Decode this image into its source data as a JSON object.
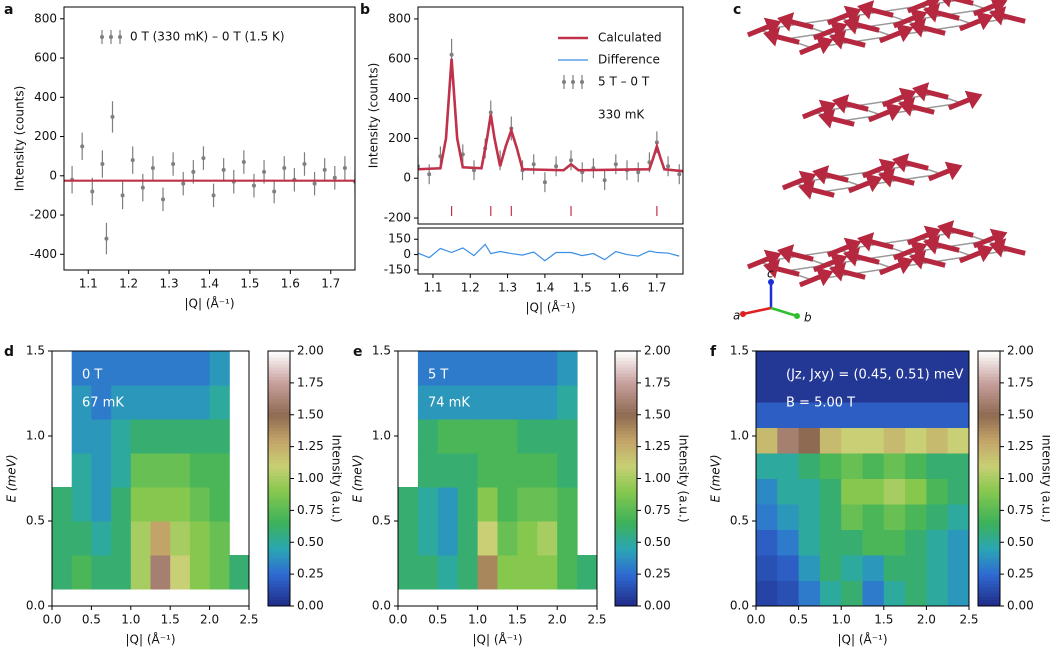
{
  "chart_data": [
    {
      "label": "a",
      "type": "errorbar",
      "xlabel": "|Q| (Å⁻¹)",
      "ylabel": "Intensity (counts)",
      "xlim": [
        1.04,
        1.76
      ],
      "ylim": [
        -480,
        860
      ],
      "xticks": [
        1.1,
        1.2,
        1.3,
        1.4,
        1.5,
        1.6,
        1.7
      ],
      "yticks": [
        -400,
        -200,
        0,
        200,
        400,
        600,
        800
      ],
      "series": [
        {
          "name": "0 T (330 mK) – 0 T (1.5 K)",
          "color": "#7f7f7f",
          "style": "errorbar",
          "x": [
            1.06,
            1.085,
            1.11,
            1.135,
            1.145,
            1.16,
            1.185,
            1.21,
            1.235,
            1.26,
            1.285,
            1.31,
            1.335,
            1.36,
            1.385,
            1.41,
            1.435,
            1.46,
            1.485,
            1.51,
            1.535,
            1.56,
            1.585,
            1.61,
            1.635,
            1.66,
            1.685,
            1.71,
            1.735,
            1.76
          ],
          "values": [
            -20,
            150,
            -80,
            60,
            -320,
            300,
            -100,
            80,
            -60,
            40,
            -120,
            60,
            -40,
            20,
            90,
            -100,
            30,
            -30,
            70,
            -50,
            20,
            -80,
            40,
            -20,
            60,
            -40,
            30,
            -10,
            40,
            -30
          ],
          "errors": [
            70,
            70,
            70,
            70,
            80,
            80,
            70,
            70,
            70,
            60,
            60,
            60,
            60,
            60,
            60,
            60,
            60,
            60,
            60,
            60,
            60,
            60,
            60,
            60,
            60,
            60,
            60,
            60,
            60,
            60
          ]
        }
      ],
      "fit": {
        "color": "#c0314a",
        "x": [
          1.04,
          1.76
        ],
        "values": [
          -25,
          -25
        ]
      }
    },
    {
      "label": "b",
      "type": "errorbar",
      "xlabel": "|Q| (Å⁻¹)",
      "ylabel": "Intensity (counts)",
      "xlim": [
        1.06,
        1.77
      ],
      "ylim": [
        -230,
        860
      ],
      "xticks": [
        1.1,
        1.2,
        1.3,
        1.4,
        1.5,
        1.6,
        1.7
      ],
      "yticks": [
        -200,
        0,
        200,
        400,
        600,
        800
      ],
      "lower_ylim": [
        -190,
        260
      ],
      "lower_yticks": [
        -150,
        0,
        150
      ],
      "series": [
        {
          "name": "Calculated",
          "color": "#c0314a",
          "style": "line",
          "x": [
            1.06,
            1.12,
            1.135,
            1.15,
            1.165,
            1.18,
            1.23,
            1.245,
            1.255,
            1.265,
            1.28,
            1.295,
            1.31,
            1.325,
            1.34,
            1.45,
            1.46,
            1.47,
            1.48,
            1.49,
            1.68,
            1.69,
            1.7,
            1.71,
            1.72,
            1.77
          ],
          "values": [
            45,
            50,
            200,
            600,
            200,
            55,
            50,
            200,
            320,
            200,
            60,
            160,
            240,
            150,
            45,
            40,
            55,
            70,
            55,
            40,
            45,
            100,
            160,
            100,
            45,
            35
          ]
        },
        {
          "name": "Difference",
          "color": "#3a8ee6",
          "style": "line",
          "axis": "lower",
          "x": [
            1.06,
            1.09,
            1.12,
            1.15,
            1.18,
            1.21,
            1.24,
            1.255,
            1.28,
            1.31,
            1.34,
            1.37,
            1.4,
            1.43,
            1.47,
            1.5,
            1.53,
            1.56,
            1.59,
            1.62,
            1.65,
            1.68,
            1.7,
            1.73,
            1.76
          ],
          "values": [
            15,
            -30,
            60,
            20,
            65,
            -10,
            100,
            10,
            30,
            10,
            -5,
            25,
            -60,
            20,
            20,
            -10,
            10,
            -50,
            30,
            0,
            -15,
            35,
            20,
            15,
            -15
          ]
        },
        {
          "name": "5 T – 0 T",
          "color": "#7f7f7f",
          "style": "errorbar",
          "x": [
            1.06,
            1.09,
            1.12,
            1.15,
            1.18,
            1.21,
            1.24,
            1.255,
            1.28,
            1.31,
            1.34,
            1.37,
            1.4,
            1.43,
            1.47,
            1.5,
            1.53,
            1.56,
            1.59,
            1.62,
            1.65,
            1.68,
            1.7,
            1.73,
            1.76
          ],
          "values": [
            60,
            20,
            110,
            620,
            120,
            40,
            150,
            330,
            90,
            250,
            40,
            70,
            -20,
            60,
            90,
            30,
            50,
            -10,
            70,
            40,
            30,
            80,
            180,
            60,
            20
          ],
          "errors": [
            50,
            50,
            50,
            80,
            50,
            50,
            50,
            60,
            50,
            60,
            50,
            50,
            50,
            50,
            50,
            50,
            50,
            50,
            50,
            50,
            50,
            50,
            55,
            50,
            50
          ]
        }
      ],
      "peak_positions": [
        1.15,
        1.255,
        1.31,
        1.47,
        1.7
      ],
      "peak_color": "#c0314a",
      "annotation": "330 mK"
    },
    {
      "label": "d",
      "type": "heatmap",
      "xlabel": "|Q| (Å⁻¹)",
      "ylabel": "E (meV)",
      "xlim": [
        0,
        2.5
      ],
      "ylim": [
        0,
        1.5
      ],
      "xticks": [
        {
          "value": 0,
          "label": "0.0"
        },
        0.5,
        {
          "value": 1,
          "label": "1.0"
        },
        1.5,
        {
          "value": 2,
          "label": "2.0"
        },
        2.5
      ],
      "yticks": [
        {
          "value": 0,
          "label": "0.0"
        },
        0.5,
        {
          "value": 1,
          "label": "1.0"
        },
        1.5
      ],
      "xbins": [
        0,
        0.25,
        0.5,
        0.75,
        1,
        1.25,
        1.5,
        1.75,
        2,
        2.25,
        2.5
      ],
      "ybins": [
        0.1,
        0.3,
        0.5,
        0.7,
        0.9,
        1.1,
        1.3,
        1.5
      ],
      "z": [
        [
          0.6,
          0.7,
          0.6,
          0.6,
          1.0,
          1.6,
          1.1,
          0.9,
          0.8,
          0.6
        ],
        [
          0.6,
          0.6,
          0.5,
          0.6,
          1.0,
          1.3,
          1.0,
          0.9,
          0.8,
          null
        ],
        [
          0.6,
          0.5,
          0.4,
          0.6,
          0.9,
          0.9,
          0.9,
          0.8,
          0.7,
          null
        ],
        [
          null,
          0.5,
          0.4,
          0.5,
          0.8,
          0.8,
          0.8,
          0.7,
          0.7,
          null
        ],
        [
          null,
          0.4,
          0.4,
          0.5,
          0.6,
          0.6,
          0.6,
          0.6,
          0.6,
          null
        ],
        [
          null,
          0.4,
          0.3,
          0.4,
          0.4,
          0.4,
          0.4,
          0.4,
          0.5,
          null
        ],
        [
          null,
          0.3,
          0.3,
          0.3,
          0.3,
          0.3,
          0.3,
          0.3,
          0.4,
          null
        ]
      ],
      "clim": [
        0,
        2
      ],
      "clabel": "Intensity (a.u.)",
      "cticks": [
        {
          "value": 0,
          "label": "0.00"
        },
        {
          "value": 0.25,
          "label": "0.25"
        },
        {
          "value": 0.5,
          "label": "0.50"
        },
        {
          "value": 0.75,
          "label": "0.75"
        },
        {
          "value": 1,
          "label": "1.00"
        },
        {
          "value": 1.25,
          "label": "1.25"
        },
        {
          "value": 1.5,
          "label": "1.50"
        },
        {
          "value": 1.75,
          "label": "1.75"
        },
        {
          "value": 2,
          "label": "2.00"
        }
      ],
      "annotations": [
        "0 T",
        "67 mK"
      ]
    },
    {
      "label": "e",
      "type": "heatmap",
      "xlabel": "|Q| (Å⁻¹)",
      "ylabel": "E (meV)",
      "xlim": [
        0,
        2.5
      ],
      "ylim": [
        0,
        1.5
      ],
      "xticks": [
        {
          "value": 0,
          "label": "0.0"
        },
        0.5,
        {
          "value": 1,
          "label": "1.0"
        },
        1.5,
        {
          "value": 2,
          "label": "2.0"
        },
        2.5
      ],
      "yticks": [
        {
          "value": 0,
          "label": "0.0"
        },
        0.5,
        {
          "value": 1,
          "label": "1.0"
        },
        1.5
      ],
      "xbins": [
        0,
        0.25,
        0.5,
        0.75,
        1,
        1.25,
        1.5,
        1.75,
        2,
        2.25,
        2.5
      ],
      "ybins": [
        0.1,
        0.3,
        0.5,
        0.7,
        0.9,
        1.1,
        1.3,
        1.5
      ],
      "z": [
        [
          0.6,
          0.6,
          0.5,
          0.6,
          1.4,
          0.9,
          0.9,
          0.9,
          0.7,
          0.6
        ],
        [
          0.6,
          0.5,
          0.4,
          0.6,
          1.1,
          0.8,
          0.9,
          1.0,
          0.7,
          null
        ],
        [
          0.6,
          0.5,
          0.4,
          0.6,
          0.9,
          0.7,
          0.8,
          0.8,
          0.7,
          null
        ],
        [
          null,
          0.6,
          0.6,
          0.6,
          0.7,
          0.7,
          0.7,
          0.7,
          0.6,
          null
        ],
        [
          null,
          0.6,
          0.7,
          0.7,
          0.7,
          0.7,
          0.6,
          0.6,
          0.6,
          null
        ],
        [
          null,
          0.4,
          0.4,
          0.4,
          0.4,
          0.4,
          0.4,
          0.4,
          0.5,
          null
        ],
        [
          null,
          0.3,
          0.3,
          0.3,
          0.3,
          0.3,
          0.3,
          0.3,
          0.4,
          null
        ]
      ],
      "clim": [
        0,
        2
      ],
      "clabel": "Intensity (a.u.)",
      "cticks": [
        {
          "value": 0,
          "label": "0.00"
        },
        {
          "value": 0.25,
          "label": "0.25"
        },
        {
          "value": 0.5,
          "label": "0.50"
        },
        {
          "value": 0.75,
          "label": "0.75"
        },
        {
          "value": 1,
          "label": "1.00"
        },
        {
          "value": 1.25,
          "label": "1.25"
        },
        {
          "value": 1.5,
          "label": "1.50"
        },
        {
          "value": 1.75,
          "label": "1.75"
        },
        {
          "value": 2,
          "label": "2.00"
        }
      ],
      "annotations": [
        "5 T",
        "74 mK"
      ]
    },
    {
      "label": "f",
      "type": "heatmap",
      "xlabel": "|Q| (Å⁻¹)",
      "ylabel": "E (meV)",
      "xlim": [
        0,
        2.5
      ],
      "ylim": [
        0,
        1.5
      ],
      "xticks": [
        {
          "value": 0,
          "label": "0.0"
        },
        0.5,
        {
          "value": 1,
          "label": "1.0"
        },
        1.5,
        {
          "value": 2,
          "label": "2.0"
        },
        2.5
      ],
      "yticks": [
        {
          "value": 0,
          "label": "0.0"
        },
        0.5,
        {
          "value": 1,
          "label": "1.0"
        },
        1.5
      ],
      "xbins": [
        0,
        0.25,
        0.5,
        0.75,
        1,
        1.25,
        1.5,
        1.75,
        2,
        2.25,
        2.5
      ],
      "ybins": [
        0,
        0.15,
        0.3,
        0.45,
        0.6,
        0.75,
        0.9,
        1.05,
        1.2,
        1.35,
        1.5
      ],
      "z": [
        [
          0.1,
          0.15,
          0.3,
          0.5,
          0.6,
          0.3,
          0.5,
          0.6,
          0.5,
          0.4
        ],
        [
          0.15,
          0.2,
          0.4,
          0.6,
          0.5,
          0.4,
          0.6,
          0.6,
          0.5,
          0.4
        ],
        [
          0.2,
          0.3,
          0.5,
          0.6,
          0.6,
          0.7,
          0.7,
          0.6,
          0.5,
          0.4
        ],
        [
          0.3,
          0.4,
          0.5,
          0.6,
          0.8,
          0.7,
          0.8,
          0.7,
          0.6,
          0.5
        ],
        [
          0.35,
          0.5,
          0.5,
          0.6,
          0.9,
          0.9,
          1.0,
          0.9,
          0.7,
          0.6
        ],
        [
          0.5,
          0.5,
          0.6,
          0.7,
          0.8,
          0.7,
          0.8,
          0.7,
          0.6,
          0.6
        ],
        [
          1.2,
          1.6,
          1.5,
          1.2,
          1.1,
          1.1,
          1.2,
          1.1,
          1.2,
          1.1
        ],
        [
          0.2,
          0.2,
          0.2,
          0.2,
          0.2,
          0.2,
          0.2,
          0.2,
          0.2,
          0.2
        ],
        [
          0.05,
          0.05,
          0.05,
          0.05,
          0.05,
          0.05,
          0.05,
          0.05,
          0.05,
          0.05
        ],
        [
          0.05,
          0.05,
          0.05,
          0.05,
          0.05,
          0.05,
          0.05,
          0.05,
          0.05,
          0.05
        ]
      ],
      "clim": [
        0,
        2
      ],
      "clabel": "Intensity (a.u.)",
      "cticks": [
        {
          "value": 0,
          "label": "0.00"
        },
        {
          "value": 0.25,
          "label": "0.25"
        },
        {
          "value": 0.5,
          "label": "0.50"
        },
        {
          "value": 0.75,
          "label": "0.75"
        },
        {
          "value": 1,
          "label": "1.00"
        },
        {
          "value": 1.25,
          "label": "1.25"
        },
        {
          "value": 1.5,
          "label": "1.50"
        },
        {
          "value": 1.75,
          "label": "1.75"
        },
        {
          "value": 2,
          "label": "2.00"
        }
      ],
      "annotations": [
        "(Jz, Jxy) = (0.45, 0.51) meV",
        "B = 5.00 T"
      ]
    }
  ],
  "colormap": [
    [
      0,
      "#202a86"
    ],
    [
      0.25,
      "#2f6bd3"
    ],
    [
      0.45,
      "#2aa6b3"
    ],
    [
      0.65,
      "#3bb15a"
    ],
    [
      0.9,
      "#86c84e"
    ],
    [
      1.1,
      "#c8cf74"
    ],
    [
      1.3,
      "#c3a468"
    ],
    [
      1.5,
      "#8f6a52"
    ],
    [
      1.75,
      "#c79f9c"
    ],
    [
      2,
      "#ffffff"
    ]
  ],
  "structure": {
    "label": "c",
    "axis_labels": [
      "a",
      "b",
      "c"
    ]
  }
}
